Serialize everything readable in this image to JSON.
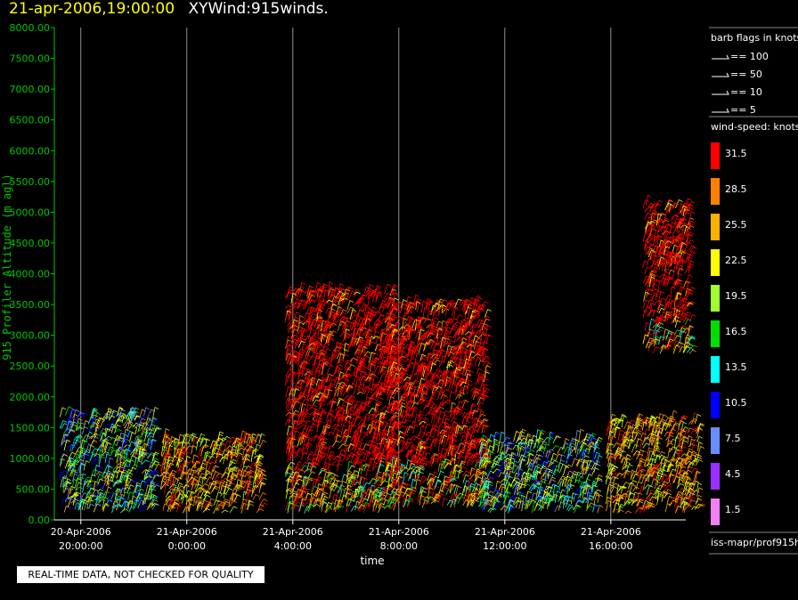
{
  "header": {
    "date": "21-apr-2006,19:00:00",
    "title": "XYWind:915winds."
  },
  "notice": "REAL-TIME DATA, NOT CHECKED FOR QUALITY",
  "source": "iss-mapr/prof915h",
  "colors": {
    "axis_y": "#00c800",
    "axis_x": "#ffffff",
    "grid": "#b4b4b4"
  },
  "chart_data": {
    "type": "scatter",
    "ylabel": "915 Profiler Altitude (m agl)",
    "xlabel": "time",
    "yticks": [
      "0.00",
      "500.00",
      "1000.00",
      "1500.00",
      "2000.00",
      "2500.00",
      "3000.00",
      "3500.00",
      "4000.00",
      "4500.00",
      "5000.00",
      "5500.00",
      "6000.00",
      "6500.00",
      "7000.00",
      "7500.00",
      "8000.00"
    ],
    "ylim": [
      0,
      8000
    ],
    "xticks": [
      {
        "line1": "20-Apr-2006",
        "line2": "20:00:00",
        "hour": 0
      },
      {
        "line1": "21-Apr-2006",
        "line2": "0:00:00",
        "hour": 4
      },
      {
        "line1": "21-Apr-2006",
        "line2": "4:00:00",
        "hour": 8
      },
      {
        "line1": "21-Apr-2006",
        "line2": "8:00:00",
        "hour": 12
      },
      {
        "line1": "21-Apr-2006",
        "line2": "12:00:00",
        "hour": 16
      },
      {
        "line1": "21-Apr-2006",
        "line2": "16:00:00",
        "hour": 20
      }
    ],
    "xlim_hours": [
      -1,
      23.5
    ],
    "barb_legend": {
      "title": "barb flags in knots",
      "entries": [
        "== 100",
        "== 50",
        "== 10",
        "== 5"
      ]
    },
    "speed_legend": {
      "title": "wind-speed: knots",
      "bins": [
        {
          "label": "31.5",
          "color": "#ff0000"
        },
        {
          "label": "28.5",
          "color": "#ff8000"
        },
        {
          "label": "25.5",
          "color": "#ffb000"
        },
        {
          "label": "22.5",
          "color": "#ffff00"
        },
        {
          "label": "19.5",
          "color": "#a0ff30"
        },
        {
          "label": "16.5",
          "color": "#00e000"
        },
        {
          "label": "13.5",
          "color": "#00ffff"
        },
        {
          "label": "10.5",
          "color": "#0000ff"
        },
        {
          "label": "7.5",
          "color": "#6a8cff"
        },
        {
          "label": "4.5",
          "color": "#9a30ff"
        },
        {
          "label": "1.5",
          "color": "#f080f0"
        }
      ]
    },
    "regions": [
      {
        "t0": -0.8,
        "t1": 2.8,
        "h0": 100,
        "h1": 1700,
        "profile": "cool"
      },
      {
        "t0": 3.0,
        "t1": 6.8,
        "h0": 100,
        "h1": 1300,
        "profile": "warm"
      },
      {
        "t0": 7.7,
        "t1": 11.8,
        "h0": 100,
        "h1": 3700,
        "profile": "hot"
      },
      {
        "t0": 11.5,
        "t1": 15.3,
        "h0": 200,
        "h1": 3500,
        "profile": "hot"
      },
      {
        "t0": 15.0,
        "t1": 19.5,
        "h0": 100,
        "h1": 1300,
        "profile": "cool"
      },
      {
        "t0": 19.8,
        "t1": 23.3,
        "h0": 100,
        "h1": 1600,
        "profile": "warm"
      },
      {
        "t0": 21.2,
        "t1": 23.0,
        "h0": 2700,
        "h1": 5100,
        "profile": "hot"
      }
    ]
  }
}
